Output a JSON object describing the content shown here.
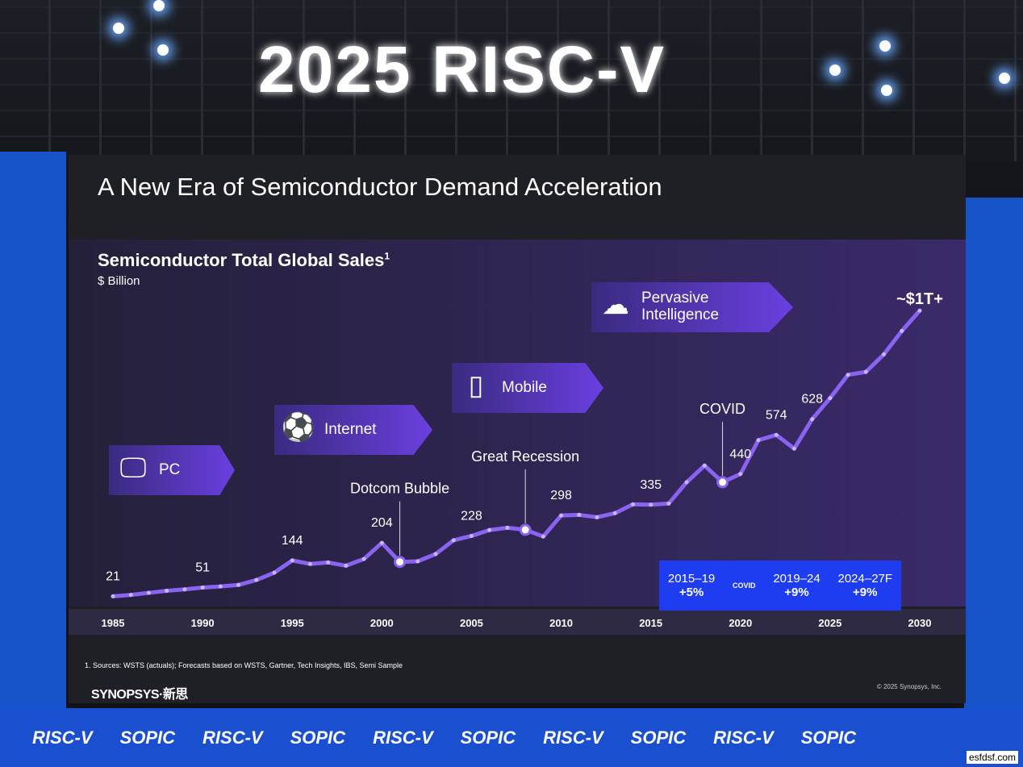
{
  "event_sign": "2025 RISC-V",
  "slide": {
    "title": "A New Era of Semiconductor Demand Acceleration",
    "footnote": "1. Sources: WSTS (actuals); Forecasts based on WSTS, Gartner, Tech Insights, IBS, Semi Sample",
    "logo": "SYNOPSYS·新思",
    "copyright": "© 2025 Synopsys, Inc."
  },
  "eras": [
    {
      "label": "PC",
      "icon": "monitor-icon"
    },
    {
      "label": "Internet",
      "icon": "globe-icon"
    },
    {
      "label": "Mobile",
      "icon": "smartphone-icon"
    },
    {
      "label": "Pervasive Intelligence",
      "icon": "brain-icon"
    }
  ],
  "growth_rates": [
    {
      "period": "2015–19",
      "rate": "+5%"
    },
    {
      "separator": "COVID"
    },
    {
      "period": "2019–24",
      "rate": "+9%"
    },
    {
      "period": "2024–27F",
      "rate": "+9%"
    }
  ],
  "chart_data": {
    "type": "line",
    "title": "Semiconductor Total Global Sales",
    "title_superscript": "1",
    "ylabel": "$ Billion",
    "xlim": [
      1985,
      2030
    ],
    "ylim": [
      0,
      1050
    ],
    "x_ticks": [
      "1985",
      "1990",
      "1995",
      "2000",
      "2005",
      "2010",
      "2015",
      "2020",
      "2025",
      "2030"
    ],
    "x": [
      1985,
      1986,
      1987,
      1988,
      1989,
      1990,
      1991,
      1992,
      1993,
      1994,
      1995,
      1996,
      1997,
      1998,
      1999,
      2000,
      2001,
      2002,
      2003,
      2004,
      2005,
      2006,
      2007,
      2008,
      2009,
      2010,
      2011,
      2012,
      2013,
      2014,
      2015,
      2016,
      2017,
      2018,
      2019,
      2020,
      2021,
      2022,
      2023,
      2024,
      2025,
      2026,
      2027,
      2028,
      2029,
      2030
    ],
    "values": [
      21,
      26,
      33,
      40,
      45,
      51,
      55,
      60,
      77,
      102,
      144,
      132,
      137,
      126,
      149,
      204,
      139,
      141,
      166,
      213,
      228,
      248,
      256,
      249,
      226,
      298,
      300,
      292,
      306,
      336,
      335,
      339,
      412,
      469,
      412,
      440,
      556,
      574,
      527,
      628,
      700,
      780,
      790,
      850,
      930,
      1000
    ],
    "data_labels": [
      {
        "x": 1985,
        "label": "21"
      },
      {
        "x": 1990,
        "label": "51"
      },
      {
        "x": 1995,
        "label": "144"
      },
      {
        "x": 2000,
        "label": "204"
      },
      {
        "x": 2005,
        "label": "228"
      },
      {
        "x": 2010,
        "label": "298"
      },
      {
        "x": 2015,
        "label": "335"
      },
      {
        "x": 2020,
        "label": "440"
      },
      {
        "x": 2022,
        "label": "574"
      },
      {
        "x": 2024,
        "label": "628"
      },
      {
        "x": 2030,
        "label": "~$1T+"
      }
    ],
    "annotations": [
      {
        "x": 2001,
        "label": "Dotcom Bubble"
      },
      {
        "x": 2008,
        "label": "Great Recession"
      },
      {
        "x": 2019,
        "label": "COVID"
      }
    ],
    "line_color": "#8a63f0",
    "grid": false
  },
  "bottom_band": [
    "RISC-V",
    "SOPIC",
    "RISC-V",
    "SOPIC",
    "RISC-V",
    "SOPIC",
    "RISC-V",
    "SOPIC",
    "RISC-V",
    "SOPIC"
  ],
  "watermark": "esfdsf.com"
}
